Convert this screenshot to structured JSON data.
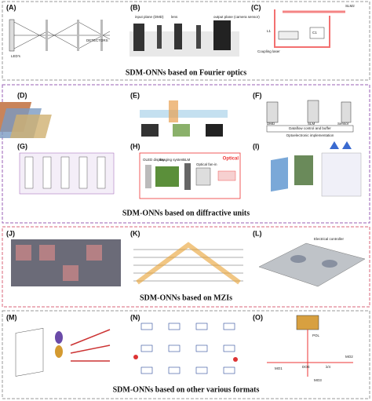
{
  "sections": [
    {
      "caption": "SDM-ONNs based on Fourier optics",
      "panels": [
        {
          "label": "(A)",
          "texts": [
            "LED's",
            "DETECTORS"
          ]
        },
        {
          "label": "(B)",
          "texts": [
            "input plane (DMD)",
            "lens",
            "output plane (camera sensor)"
          ]
        },
        {
          "label": "(C)",
          "texts": [
            "L1",
            "C1",
            "SLM2",
            "Coupling laser"
          ]
        }
      ]
    },
    {
      "caption": "SDM-ONNs based on diffractive units",
      "panels": [
        {
          "label": "(D)",
          "texts": []
        },
        {
          "label": "(E)",
          "texts": []
        },
        {
          "label": "(F)",
          "texts": [
            "DMD",
            "SLM",
            "Sensor",
            "Dataflow control and buffer",
            "Optoelectronic implementation"
          ]
        },
        {
          "label": "(G)",
          "texts": []
        },
        {
          "label": "(H)",
          "texts": [
            "OLED display",
            "Imaging system",
            "SLM",
            "Optical fan-in",
            "Optical"
          ]
        },
        {
          "label": "(I)",
          "texts": []
        }
      ]
    },
    {
      "caption": "SDM-ONNs based on MZIs",
      "panels": [
        {
          "label": "(J)",
          "texts": []
        },
        {
          "label": "(K)",
          "texts": []
        },
        {
          "label": "(L)",
          "texts": [
            "Electrical controller"
          ]
        }
      ]
    },
    {
      "caption": "SDM-ONNs based on other various formats",
      "panels": [
        {
          "label": "(M)",
          "texts": []
        },
        {
          "label": "(N)",
          "texts": []
        },
        {
          "label": "(O)",
          "texts": [
            "MO1",
            "MO2",
            "MO3",
            "λ/4",
            "DOE",
            "POL"
          ]
        }
      ]
    }
  ]
}
